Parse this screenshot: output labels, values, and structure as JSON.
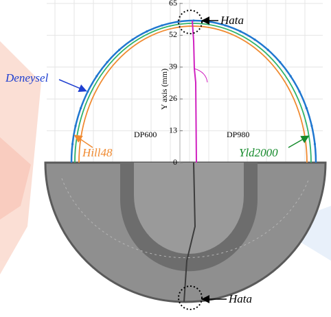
{
  "figure": {
    "y_axis_label": "Y axis (mm)",
    "ylim": [
      0,
      65
    ],
    "yticks": [
      0,
      13,
      26,
      39,
      52,
      65
    ],
    "labels": {
      "failure_top": "Hata",
      "failure_bottom": "Hata",
      "experimental": "Deneysel",
      "hill48": "Hill48",
      "yld2000": "Yld2000",
      "left_material": "DP600",
      "right_material": "DP980"
    }
  }
}
